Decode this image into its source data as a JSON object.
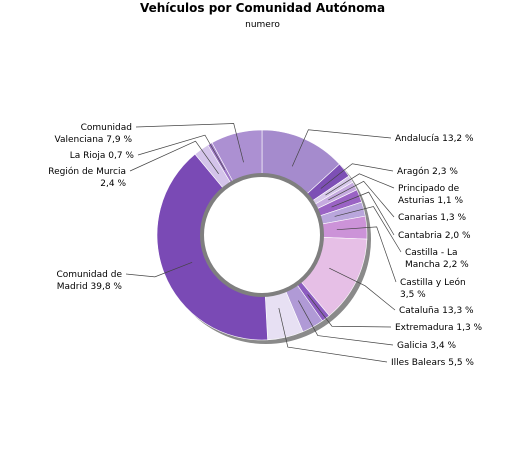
{
  "chart_data": {
    "type": "pie",
    "title": "Vehículos por Comunidad Autónoma",
    "subtitle": "numero",
    "donut": true,
    "slices": [
      {
        "label": [
          "Andalucía 13,2 %"
        ],
        "value": 13.2,
        "color": "#a58bcd"
      },
      {
        "label": [
          "Aragón 2,3 %"
        ],
        "value": 2.3,
        "color": "#7d4fb5"
      },
      {
        "label": [
          "Principado de",
          "Asturias 1,1 %"
        ],
        "value": 1.1,
        "color": "#d7c8ea"
      },
      {
        "label": [
          "Canarias 1,3 %"
        ],
        "value": 1.3,
        "color": "#c6abe0"
      },
      {
        "label": [
          "Cantabria 2,0 %"
        ],
        "value": 2.0,
        "color": "#9a63c4"
      },
      {
        "label": [
          "Castilla - La",
          "Mancha 2,2 %"
        ],
        "value": 2.2,
        "color": "#b9a6dc"
      },
      {
        "label": [
          "Castilla y León",
          "3,5 %"
        ],
        "value": 3.5,
        "color": "#cc93d8"
      },
      {
        "label": [
          "Cataluña 13,3 %"
        ],
        "value": 13.3,
        "color": "#e6bfe6"
      },
      {
        "label": [
          "Extremadura 1,3 %"
        ],
        "value": 1.3,
        "color": "#8c5cc0"
      },
      {
        "label": [
          "Galicia 3,4 %"
        ],
        "value": 3.4,
        "color": "#b09ad6"
      },
      {
        "label": [
          "Illes Balears 5,5 %"
        ],
        "value": 5.5,
        "color": "#e7e0f3"
      },
      {
        "label": [
          "Comunidad de",
          "Madrid 39,8 %"
        ],
        "value": 39.8,
        "color": "#7a4ab5"
      },
      {
        "label": [
          "Región de Murcia",
          "2,4 %"
        ],
        "value": 2.4,
        "color": "#d4c4ea"
      },
      {
        "label": [
          "La Rioja 0,7 %"
        ],
        "value": 0.7,
        "color": "#a07ac9"
      },
      {
        "label": [
          "Comunidad",
          "Valenciana 7,9 %"
        ],
        "value": 7.9,
        "color": "#ac90d2"
      }
    ]
  }
}
